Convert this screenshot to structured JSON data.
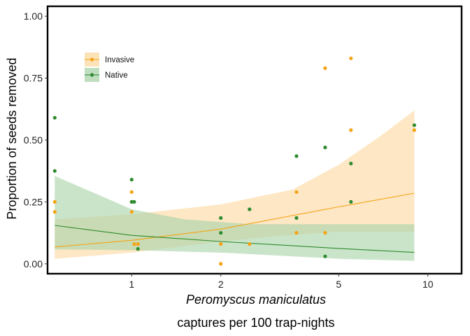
{
  "chart_data": {
    "type": "scatter",
    "xlabel_line1": "Peromyscus maniculatus",
    "xlabel_line2": "captures per 100 trap-nights",
    "ylabel": "Proportion of seeds removed",
    "x_scale": "log",
    "xlim": [
      0.52,
      13
    ],
    "ylim": [
      -0.04,
      1.04
    ],
    "x_ticks": [
      1,
      2,
      5,
      10
    ],
    "x_tick_labels": [
      "1",
      "2",
      "5",
      "10"
    ],
    "y_ticks": [
      0,
      0.25,
      0.5,
      0.75,
      1
    ],
    "y_tick_labels": [
      "0.00",
      "0.25",
      "0.50",
      "0.75",
      "1.00"
    ],
    "grid": false,
    "legend_position": "top-left",
    "series": [
      {
        "name": "Invasive",
        "color": "#F5A314",
        "band_color": "#FBD99F",
        "points": [
          [
            0.55,
            0.25
          ],
          [
            0.55,
            0.21
          ],
          [
            1.0,
            0.29
          ],
          [
            1.0,
            0.21
          ],
          [
            1.0,
            0.25
          ],
          [
            1.02,
            0.08
          ],
          [
            1.05,
            0.08
          ],
          [
            2.0,
            0.08
          ],
          [
            2.0,
            0.0
          ],
          [
            2.5,
            0.08
          ],
          [
            3.6,
            0.29
          ],
          [
            3.6,
            0.125
          ],
          [
            4.5,
            0.79
          ],
          [
            4.5,
            0.125
          ],
          [
            5.5,
            0.83
          ],
          [
            5.5,
            0.54
          ],
          [
            9.0,
            0.54
          ]
        ],
        "fit": [
          [
            0.55,
            0.068
          ],
          [
            1.0,
            0.095
          ],
          [
            2.0,
            0.14
          ],
          [
            5.0,
            0.23
          ],
          [
            9.0,
            0.285
          ]
        ],
        "ci_upper": [
          [
            0.55,
            0.18
          ],
          [
            1.0,
            0.2
          ],
          [
            2.0,
            0.24
          ],
          [
            3.5,
            0.3
          ],
          [
            5.0,
            0.4
          ],
          [
            7.0,
            0.52
          ],
          [
            9.0,
            0.62
          ]
        ],
        "ci_lower": [
          [
            0.55,
            0.02
          ],
          [
            1.0,
            0.045
          ],
          [
            2.0,
            0.09
          ],
          [
            3.0,
            0.11
          ],
          [
            5.0,
            0.13
          ],
          [
            9.0,
            0.13
          ]
        ]
      },
      {
        "name": "Native",
        "color": "#2E8B2E",
        "band_color": "#A9D3A9",
        "points": [
          [
            0.55,
            0.59
          ],
          [
            0.55,
            0.375
          ],
          [
            1.0,
            0.34
          ],
          [
            1.0,
            0.25
          ],
          [
            1.02,
            0.25
          ],
          [
            1.05,
            0.06
          ],
          [
            2.0,
            0.185
          ],
          [
            2.0,
            0.125
          ],
          [
            2.5,
            0.22
          ],
          [
            3.6,
            0.435
          ],
          [
            3.6,
            0.185
          ],
          [
            4.5,
            0.47
          ],
          [
            4.5,
            0.03
          ],
          [
            5.5,
            0.405
          ],
          [
            5.5,
            0.25
          ],
          [
            9.0,
            0.56
          ]
        ],
        "fit": [
          [
            0.55,
            0.155
          ],
          [
            1.0,
            0.115
          ],
          [
            2.0,
            0.09
          ],
          [
            5.0,
            0.062
          ],
          [
            9.0,
            0.046
          ]
        ],
        "ci_upper": [
          [
            0.55,
            0.355
          ],
          [
            1.0,
            0.22
          ],
          [
            1.5,
            0.18
          ],
          [
            2.5,
            0.16
          ],
          [
            5.0,
            0.16
          ],
          [
            9.0,
            0.16
          ]
        ],
        "ci_lower": [
          [
            0.55,
            0.058
          ],
          [
            1.0,
            0.055
          ],
          [
            2.0,
            0.045
          ],
          [
            3.5,
            0.03
          ],
          [
            5.0,
            0.02
          ],
          [
            9.0,
            0.012
          ]
        ]
      }
    ]
  }
}
